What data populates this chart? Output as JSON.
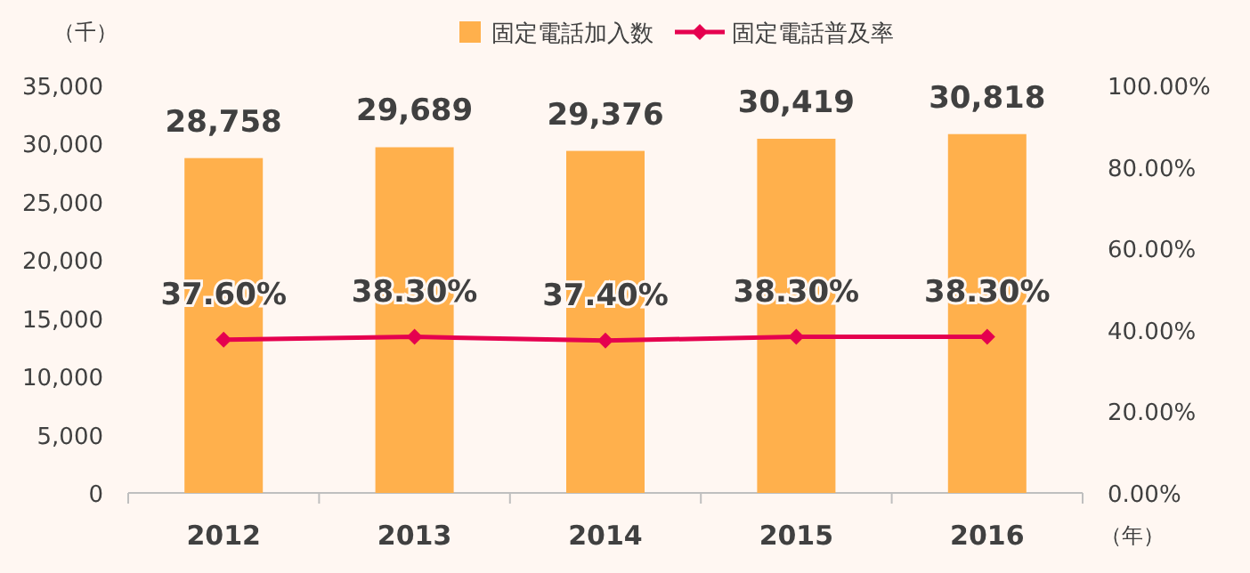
{
  "chart_data": {
    "type": "bar",
    "categories": [
      "2012",
      "2013",
      "2014",
      "2015",
      "2016"
    ],
    "ylabel": "（千）",
    "xlabel": "（年）",
    "legend": "top",
    "ylim": [
      0,
      35000
    ],
    "yticks": [
      0,
      {
        "value": 5000,
        "label": "5,000"
      },
      {
        "value": 10000,
        "label": "10,000"
      },
      {
        "value": 15000,
        "label": "15,000"
      },
      {
        "value": 20000,
        "label": "20,000"
      },
      {
        "value": 25000,
        "label": "25,000"
      },
      {
        "value": 30000,
        "label": "30,000"
      },
      {
        "value": 35000,
        "label": "35,000"
      }
    ],
    "y2lim": [
      0,
      100
    ],
    "y2ticks": [
      {
        "value": 0,
        "label": "0.00%"
      },
      {
        "value": 20,
        "label": "20.00%"
      },
      {
        "value": 40,
        "label": "40.00%"
      },
      {
        "value": 60,
        "label": "60.00%"
      },
      {
        "value": 80,
        "label": "80.00%"
      },
      {
        "value": 100,
        "label": "100.00%"
      }
    ],
    "series": [
      {
        "name": "固定電話加入数",
        "color": "#ffb04c",
        "values": [
          28758,
          29689,
          29376,
          30419,
          30818
        ],
        "value_labels": [
          "28,758",
          "29,689",
          "29,376",
          "30,419",
          "30,818"
        ]
      },
      {
        "name": "固定電話普及率",
        "type": "line",
        "axis": "y2",
        "color": "#e5004f",
        "marker": "diamond",
        "values": [
          37.6,
          38.3,
          37.4,
          38.3,
          38.3
        ],
        "value_labels": [
          "37.60%",
          "38.30%",
          "37.40%",
          "38.30%",
          "38.30%"
        ]
      }
    ]
  }
}
